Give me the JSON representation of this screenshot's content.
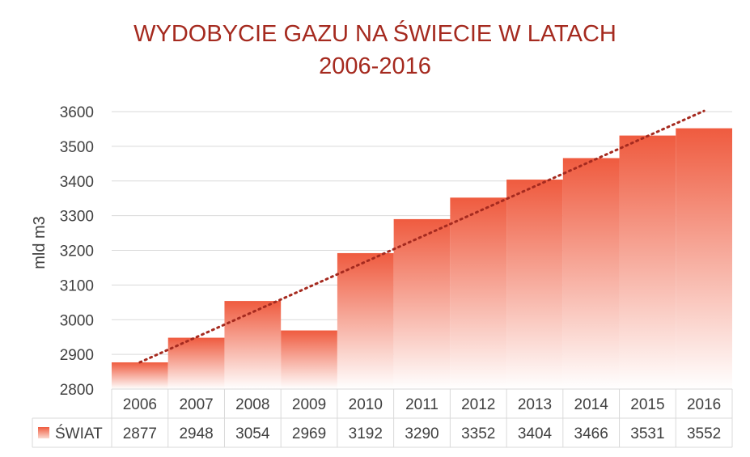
{
  "chart_data": {
    "type": "bar",
    "title_lines": [
      "WYDOBYCIE GAZU NA ŚWIECIE W LATACH",
      "2006-2016"
    ],
    "xlabel": "",
    "ylabel": "mld m3",
    "ylim": [
      2800,
      3600
    ],
    "yticks": [
      2800,
      2900,
      3000,
      3100,
      3200,
      3300,
      3400,
      3500,
      3600
    ],
    "categories": [
      "2006",
      "2007",
      "2008",
      "2009",
      "2010",
      "2011",
      "2012",
      "2013",
      "2014",
      "2015",
      "2016"
    ],
    "series": [
      {
        "name": "ŚWIAT",
        "values": [
          2877,
          2948,
          3054,
          2969,
          3192,
          3290,
          3352,
          3404,
          3466,
          3531,
          3552
        ]
      }
    ],
    "trendline": {
      "type": "linear",
      "style": "dotted"
    },
    "data_table": true,
    "legend": "data-table",
    "grid": true,
    "colors": {
      "title": "#a52a1f",
      "bar_top": "#ef5b3f",
      "bar_bottom": "#ffffff",
      "trendline": "#a52a1f",
      "grid": "#d9d9d9",
      "text": "#404040"
    }
  }
}
